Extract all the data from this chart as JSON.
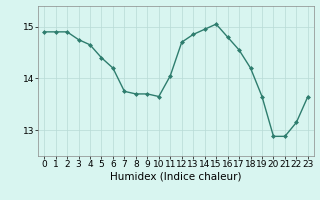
{
  "x": [
    0,
    1,
    2,
    3,
    4,
    5,
    6,
    7,
    8,
    9,
    10,
    11,
    12,
    13,
    14,
    15,
    16,
    17,
    18,
    19,
    20,
    21,
    22,
    23
  ],
  "y": [
    14.9,
    14.9,
    14.9,
    14.75,
    14.65,
    14.4,
    14.2,
    13.75,
    13.7,
    13.7,
    13.65,
    14.05,
    14.7,
    14.85,
    14.95,
    15.05,
    14.8,
    14.55,
    14.2,
    13.65,
    12.88,
    12.88,
    13.15,
    13.65
  ],
  "line_color": "#2e7d6e",
  "marker": "D",
  "marker_size": 2.0,
  "line_width": 1.0,
  "xlabel": "Humidex (Indice chaleur)",
  "xlabel_fontsize": 7.5,
  "yticks": [
    13,
    14,
    15
  ],
  "xticks": [
    0,
    1,
    2,
    3,
    4,
    5,
    6,
    7,
    8,
    9,
    10,
    11,
    12,
    13,
    14,
    15,
    16,
    17,
    18,
    19,
    20,
    21,
    22,
    23
  ],
  "ylim": [
    12.5,
    15.4
  ],
  "xlim": [
    -0.5,
    23.5
  ],
  "bg_color": "#d8f5f0",
  "grid_color": "#b8dbd6",
  "tick_fontsize": 6.5,
  "fig_bg": "#d8f5f0",
  "spine_color": "#888888"
}
